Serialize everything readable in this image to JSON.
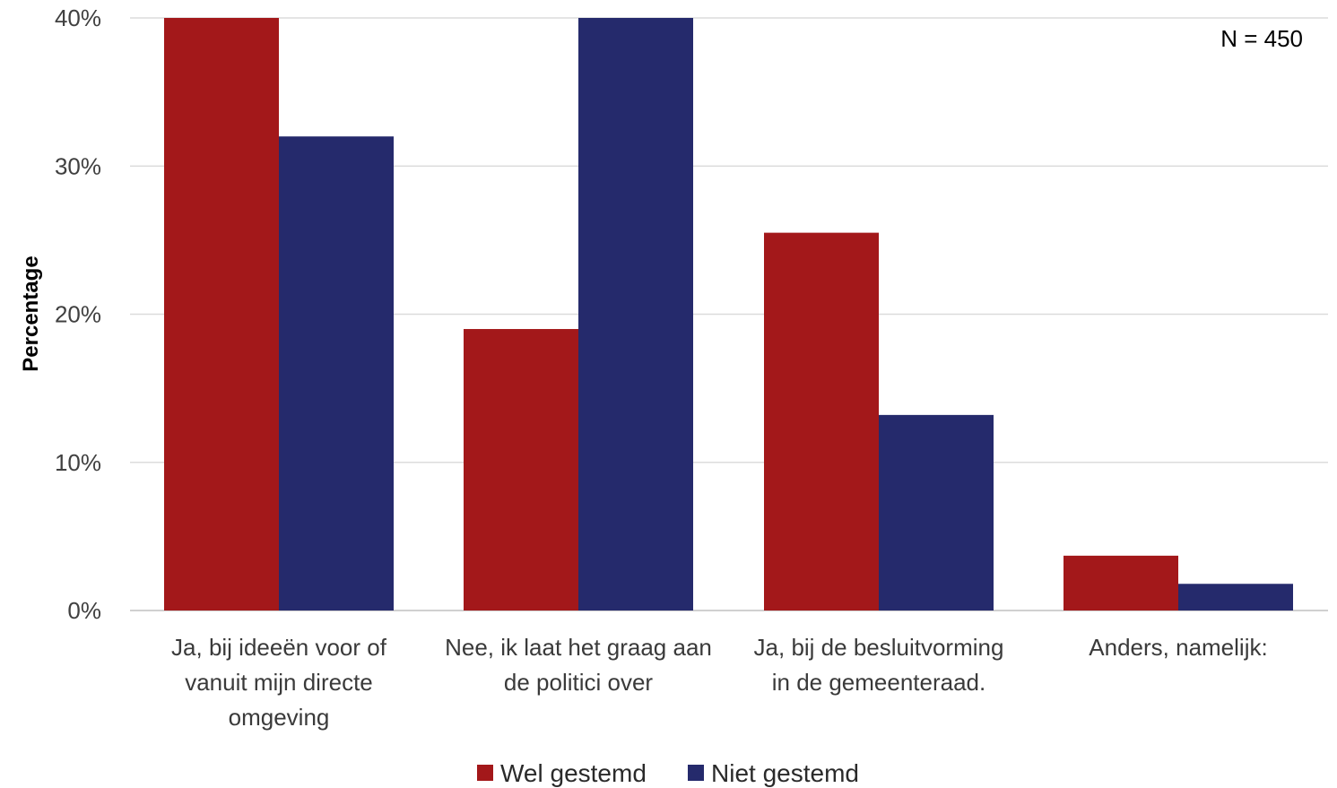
{
  "chart_data": {
    "type": "bar",
    "categories": [
      [
        "Ja, bij ideeën voor of",
        "vanuit mijn directe",
        "omgeving"
      ],
      [
        "Nee, ik laat het graag aan",
        "de politici over"
      ],
      [
        "Ja, bij de besluitvorming",
        "in de gemeenteraad."
      ],
      [
        "Anders, namelijk:"
      ]
    ],
    "series": [
      {
        "name": "Wel gestemd",
        "color": "#a3181a",
        "values": [
          40,
          19,
          25.5,
          3.7
        ]
      },
      {
        "name": "Niet gestemd",
        "color": "#252a6c",
        "values": [
          32,
          40,
          13.2,
          1.8
        ]
      }
    ],
    "ylabel": "Percentage",
    "ylim": [
      0,
      40
    ],
    "yticks": [
      0,
      10,
      20,
      30,
      40
    ],
    "ytick_labels": [
      "0%",
      "10%",
      "20%",
      "30%",
      "40%"
    ],
    "annotation": "N = 450",
    "grid": true,
    "legend_position": "bottom"
  }
}
